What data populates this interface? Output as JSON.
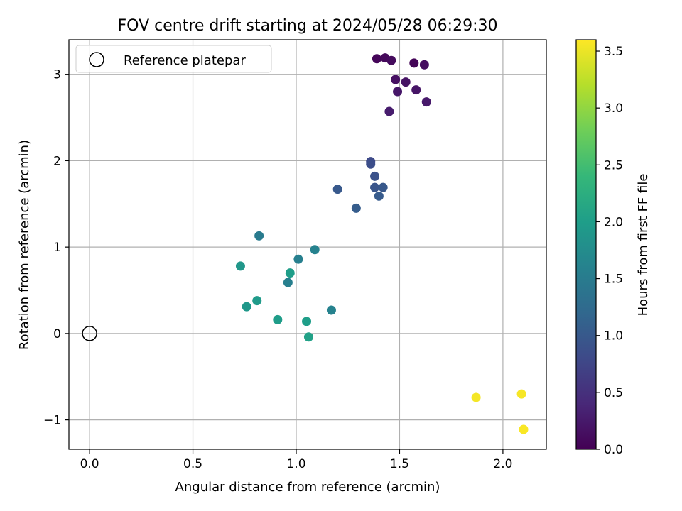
{
  "chart_data": {
    "type": "scatter",
    "title": "FOV centre drift starting at 2024/05/28 06:29:30",
    "xlabel": "Angular distance from reference (arcmin)",
    "ylabel": "Rotation from reference (arcmin)",
    "xlim": [
      -0.1,
      2.21
    ],
    "ylim": [
      -1.34,
      3.4
    ],
    "xticks": [
      0.0,
      0.5,
      1.0,
      1.5,
      2.0
    ],
    "xtick_labels": [
      "0.0",
      "0.5",
      "1.0",
      "1.5",
      "2.0"
    ],
    "yticks": [
      -1,
      0,
      1,
      2,
      3
    ],
    "ytick_labels": [
      "−1",
      "0",
      "1",
      "2",
      "3"
    ],
    "grid": true,
    "legend": {
      "placement": "top-left",
      "entries": [
        "Reference platepar"
      ]
    },
    "reference": {
      "name": "Reference platepar",
      "x": 0.0,
      "y": 0.0
    },
    "colorbar": {
      "label": "Hours from first FF file",
      "colormap": "viridis",
      "range": [
        0.0,
        3.6
      ],
      "ticks": [
        0.0,
        0.5,
        1.0,
        1.5,
        2.0,
        2.5,
        3.0,
        3.5
      ],
      "tick_labels": [
        "0.0",
        "0.5",
        "1.0",
        "1.5",
        "2.0",
        "2.5",
        "3.0",
        "3.5"
      ]
    },
    "points": [
      {
        "x": 1.39,
        "y": 3.18,
        "c": 0.05
      },
      {
        "x": 1.43,
        "y": 3.19,
        "c": 0.08
      },
      {
        "x": 1.46,
        "y": 3.16,
        "c": 0.1
      },
      {
        "x": 1.57,
        "y": 3.13,
        "c": 0.03
      },
      {
        "x": 1.62,
        "y": 3.11,
        "c": 0.12
      },
      {
        "x": 1.48,
        "y": 2.94,
        "c": 0.15
      },
      {
        "x": 1.53,
        "y": 2.91,
        "c": 0.18
      },
      {
        "x": 1.58,
        "y": 2.82,
        "c": 0.2
      },
      {
        "x": 1.49,
        "y": 2.8,
        "c": 0.22
      },
      {
        "x": 1.63,
        "y": 2.68,
        "c": 0.25
      },
      {
        "x": 1.45,
        "y": 2.57,
        "c": 0.28
      },
      {
        "x": 1.36,
        "y": 1.99,
        "c": 0.8
      },
      {
        "x": 1.36,
        "y": 1.96,
        "c": 0.85
      },
      {
        "x": 1.38,
        "y": 1.82,
        "c": 0.9
      },
      {
        "x": 1.38,
        "y": 1.69,
        "c": 0.95
      },
      {
        "x": 1.42,
        "y": 1.69,
        "c": 0.98
      },
      {
        "x": 1.2,
        "y": 1.67,
        "c": 1.0
      },
      {
        "x": 1.4,
        "y": 1.59,
        "c": 1.02
      },
      {
        "x": 1.29,
        "y": 1.45,
        "c": 1.05
      },
      {
        "x": 0.82,
        "y": 1.13,
        "c": 1.5
      },
      {
        "x": 1.09,
        "y": 0.97,
        "c": 1.6
      },
      {
        "x": 1.01,
        "y": 0.86,
        "c": 1.55
      },
      {
        "x": 0.73,
        "y": 0.78,
        "c": 1.9
      },
      {
        "x": 0.97,
        "y": 0.7,
        "c": 2.0
      },
      {
        "x": 0.96,
        "y": 0.59,
        "c": 1.55
      },
      {
        "x": 0.81,
        "y": 0.38,
        "c": 1.95
      },
      {
        "x": 0.76,
        "y": 0.31,
        "c": 1.92
      },
      {
        "x": 1.17,
        "y": 0.27,
        "c": 1.6
      },
      {
        "x": 0.91,
        "y": 0.16,
        "c": 1.98
      },
      {
        "x": 1.05,
        "y": 0.14,
        "c": 2.0
      },
      {
        "x": 1.06,
        "y": -0.04,
        "c": 2.05
      },
      {
        "x": 1.87,
        "y": -0.74,
        "c": 3.55
      },
      {
        "x": 2.09,
        "y": -0.7,
        "c": 3.56
      },
      {
        "x": 2.1,
        "y": -1.11,
        "c": 3.58
      }
    ]
  }
}
